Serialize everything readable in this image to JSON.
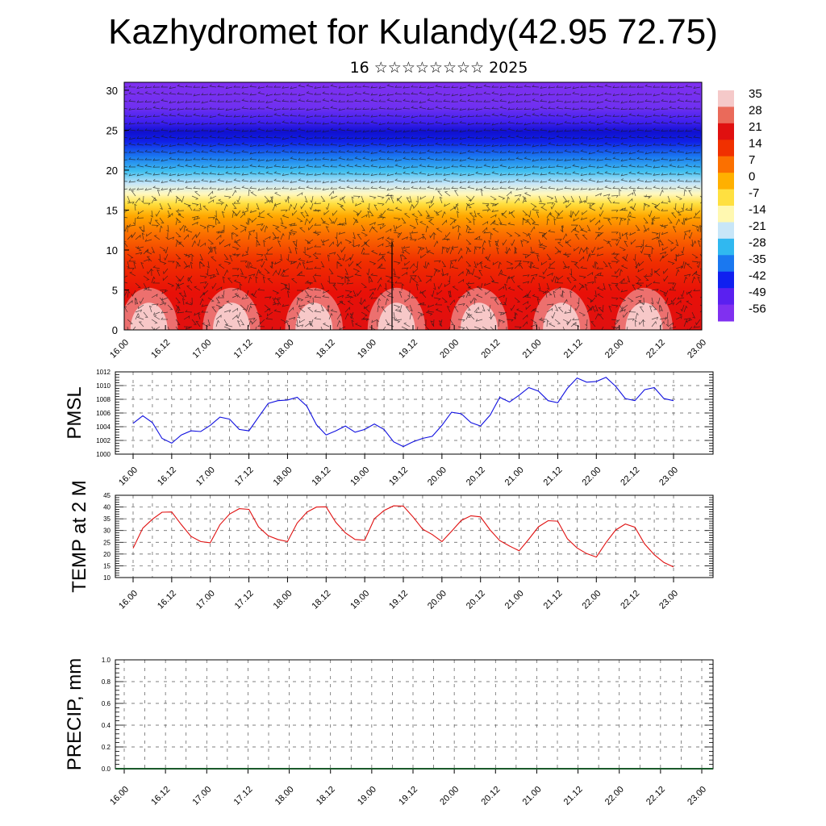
{
  "title": "Kazhydromet for Kulandy(42.95 72.75)",
  "subtitle": "16 ☆☆☆☆☆☆☆☆ 2025",
  "time_ticks": [
    "16.00",
    "16.12",
    "17.00",
    "17.12",
    "18.00",
    "18.12",
    "19.00",
    "19.12",
    "20.00",
    "20.12",
    "21.00",
    "21.12",
    "22.00",
    "22.12",
    "23.00"
  ],
  "colorbar": {
    "labels": [
      "35",
      "28",
      "21",
      "14",
      "7",
      "0",
      "-7",
      "-14",
      "-21",
      "-28",
      "-35",
      "-42",
      "-49",
      "-56"
    ],
    "colors": [
      "#f5c9c9",
      "#ea6a5a",
      "#e01010",
      "#f03000",
      "#fb7000",
      "#ffb000",
      "#ffe040",
      "#fff8b0",
      "#c8e6f8",
      "#30b8f0",
      "#1a78f0",
      "#1020f0",
      "#5a20f0",
      "#8030f0"
    ]
  },
  "chart_data": [
    {
      "type": "heatmap",
      "name": "cross-section",
      "ylim": [
        0,
        31
      ],
      "yticks": [
        0,
        5,
        10,
        15,
        20,
        25,
        30
      ],
      "x_ticks": [
        "16.00",
        "16.12",
        "17.00",
        "17.12",
        "18.00",
        "18.12",
        "19.00",
        "19.12",
        "20.00",
        "20.12",
        "21.00",
        "21.12",
        "22.00",
        "22.12",
        "23.00"
      ],
      "colorbar_range": [
        -56,
        35
      ],
      "warm_cores_near_surface_at": [
        "16.06",
        "17.06",
        "18.06",
        "19.06",
        "20.06",
        "21.06"
      ],
      "cold_layer_level": 25,
      "freezing_level": 17
    },
    {
      "type": "line",
      "ylabel": "PMSL",
      "ylim": [
        1000,
        1012
      ],
      "yticks": [
        1000,
        1002,
        1004,
        1006,
        1008,
        1010,
        1012
      ],
      "x_ticks": [
        "16.00",
        "16.12",
        "17.00",
        "17.12",
        "18.00",
        "18.12",
        "19.00",
        "19.12",
        "20.00",
        "20.12",
        "21.00",
        "21.12",
        "22.00",
        "22.12",
        "23.00"
      ],
      "color": "#1010e0",
      "values": [
        1004.5,
        1005.6,
        1004.6,
        1002.3,
        1001.6,
        1002.8,
        1003.4,
        1003.3,
        1004.2,
        1005.4,
        1005.1,
        1003.6,
        1003.4,
        1005.4,
        1007.4,
        1007.8,
        1007.9,
        1008.3,
        1007.0,
        1004.3,
        1002.8,
        1003.4,
        1004.1,
        1003.2,
        1003.6,
        1004.4,
        1003.6,
        1001.8,
        1001.1,
        1001.8,
        1002.3,
        1002.6,
        1004.2,
        1006.1,
        1005.9,
        1004.6,
        1004.1,
        1005.7,
        1008.3,
        1007.6,
        1008.6,
        1009.7,
        1009.2,
        1007.8,
        1007.5,
        1009.6,
        1011.1,
        1010.5,
        1010.6,
        1011.2,
        1009.9,
        1008.1,
        1007.8,
        1009.4,
        1009.7,
        1008.1,
        1007.8
      ]
    },
    {
      "type": "line",
      "ylabel": "TEMP at 2 M",
      "ylim": [
        10,
        45
      ],
      "yticks": [
        10,
        15,
        20,
        25,
        30,
        35,
        40,
        45
      ],
      "x_ticks": [
        "16.00",
        "16.12",
        "17.00",
        "17.12",
        "18.00",
        "18.12",
        "19.00",
        "19.12",
        "20.00",
        "20.12",
        "21.00",
        "21.12",
        "22.00",
        "22.12",
        "23.00"
      ],
      "color": "#e01010",
      "values": [
        22.5,
        31.0,
        34.8,
        37.8,
        37.9,
        32.5,
        27.5,
        25.3,
        24.8,
        32.5,
        37.0,
        39.3,
        39.0,
        31.6,
        27.8,
        26.2,
        25.3,
        33.2,
        37.8,
        40.0,
        40.1,
        33.5,
        29.0,
        26.2,
        25.9,
        35.0,
        38.5,
        40.5,
        40.4,
        35.8,
        30.6,
        28.3,
        25.3,
        29.7,
        34.3,
        36.3,
        35.8,
        30.2,
        25.7,
        23.4,
        21.4,
        26.3,
        31.6,
        34.2,
        34.0,
        26.5,
        22.6,
        20.2,
        18.7,
        24.9,
        30.2,
        32.8,
        31.4,
        24.3,
        19.7,
        16.4,
        14.5
      ]
    },
    {
      "type": "bar",
      "ylabel": "PRECIP, mm",
      "ylim": [
        0,
        1.0
      ],
      "yticks": [
        "0.0",
        "0.2",
        "0.4",
        "0.6",
        "0.8",
        "1.0"
      ],
      "x_ticks": [
        "16.00",
        "16.12",
        "17.00",
        "17.12",
        "18.00",
        "18.12",
        "19.00",
        "19.12",
        "20.00",
        "20.12",
        "21.00",
        "21.12",
        "22.00",
        "22.12",
        "23.00"
      ],
      "values_note": "all zero"
    }
  ]
}
